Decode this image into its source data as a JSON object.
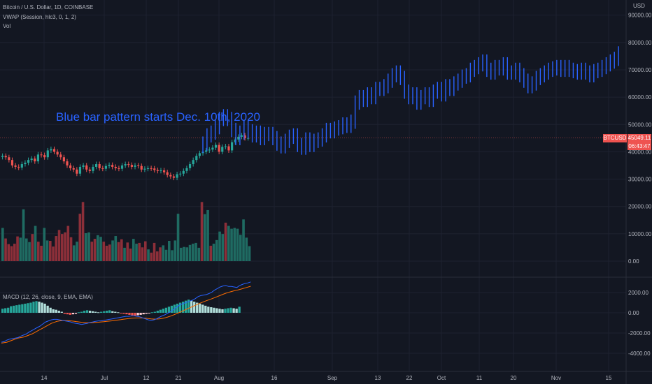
{
  "legend": {
    "symbol": "Bitcoin / U.S. Dollar, 1D, COINBASE",
    "vwap": "VWAP (Session, hlc3, 0, 1, 2)",
    "vol": "Vol",
    "macd": "MACD (12, 26, close, 9, EMA, EMA)"
  },
  "currency": "USD",
  "annotation": "Blue bar pattern starts Dec. 10th, 2020",
  "badge": {
    "ticker": "BTCUSD",
    "price": "45049.11",
    "countdown": "06:43:47"
  },
  "colors": {
    "background": "#131722",
    "grid": "#1e2230",
    "up": "#26a69a",
    "down": "#ef5350",
    "projection": "#2962ff",
    "vol_up": "#1f6b62",
    "vol_down": "#8c2f39",
    "macd_line": "#2962ff",
    "signal_line": "#ff6d00",
    "hist_pos": "#26a69a",
    "hist_pos_light": "#b2dfdb",
    "hist_neg": "#ef5350",
    "hist_neg_light": "#ffcdd2"
  },
  "chart_data": [
    {
      "type": "candlestick",
      "title": "Bitcoin / U.S. Dollar, 1D, COINBASE",
      "y_ticks": [
        "90000.00",
        "80000.00",
        "70000.00",
        "60000.00",
        "50000.00",
        "40000.00",
        "30000.00",
        "20000.00",
        "10000.00",
        "0.00"
      ],
      "x_ticks": [
        "14",
        "Jul",
        "12",
        "21",
        "Aug",
        "16",
        "Sep",
        "13",
        "22",
        "Oct",
        "11",
        "20",
        "Nov",
        "15"
      ],
      "ylim": [
        -5000,
        92000
      ],
      "last_price": 45049.11,
      "candles_close": [
        38500,
        38000,
        37000,
        35000,
        34500,
        34200,
        35500,
        36000,
        37000,
        37500,
        36500,
        39000,
        38800,
        38000,
        40500,
        41000,
        40000,
        39000,
        38000,
        36500,
        35000,
        34000,
        33500,
        32000,
        34500,
        35000,
        33500,
        33000,
        34500,
        35500,
        34000,
        33800,
        34800,
        35200,
        34500,
        34000,
        33800,
        35000,
        35500,
        35200,
        34500,
        35000,
        34800,
        33500,
        33800,
        34000,
        33900,
        33300,
        33000,
        33200,
        32500,
        31500,
        31000,
        30500,
        31800,
        32000,
        33000,
        34000,
        35500,
        37000,
        38500,
        39500,
        40000,
        40500,
        40800,
        41500,
        42500,
        40000,
        41800,
        42000,
        40500,
        43500,
        44500,
        45500,
        46000,
        45000,
        45049
      ],
      "projection_close": [
        43000,
        46000,
        47000,
        49000,
        52000,
        53000,
        52000,
        48000,
        45000,
        47000,
        49000,
        47500,
        46000,
        47000,
        45000,
        46500,
        46500,
        45000,
        43000,
        42000,
        44000,
        45500,
        46000,
        42500,
        41500,
        44500,
        42500,
        44000,
        44500,
        46000,
        48000,
        47500,
        48500,
        49000,
        50000,
        49500,
        51000,
        58000,
        60000,
        59000,
        61000,
        60000,
        63000,
        63000,
        64000,
        66000,
        68000,
        69000,
        67000,
        62000,
        60000,
        61000,
        58000,
        60000,
        61000,
        59000,
        62000,
        63000,
        61000,
        64000,
        63000,
        65000,
        66000,
        67500,
        68000,
        70000,
        71000,
        72000,
        73000,
        70000,
        69000,
        71000,
        70500,
        72000,
        69000,
        69000,
        70000,
        68000,
        66000,
        64000,
        65000,
        67000,
        68000,
        69000,
        70000,
        70500,
        71000,
        70000,
        71000,
        70000,
        69500,
        69000,
        70000,
        69000,
        68000,
        69500,
        70000,
        71000,
        72000,
        73000,
        74000,
        76000
      ],
      "volume": [
        8200,
        5600,
        4200,
        3700,
        4300,
        6100,
        5800,
        12800,
        5600,
        4700,
        6700,
        8700,
        4800,
        3800,
        8200,
        5100,
        5000,
        3600,
        6200,
        7700,
        6700,
        7100,
        8700,
        5900,
        3900,
        4800,
        11700,
        14600,
        6900,
        7100,
        4800,
        5500,
        6400,
        6000,
        4800,
        3800,
        4100,
        5100,
        6200,
        4700,
        5400,
        3300,
        4600,
        3100,
        5500,
        4300,
        4500,
        3400,
        4900,
        2900,
        2100,
        4500,
        2400,
        3400,
        3900,
        2800,
        5000,
        2700,
        5100,
        11700,
        3300,
        3500,
        3400,
        4000,
        4300,
        4500,
        3300,
        14600,
        11600,
        12600,
        3800,
        4300,
        5200,
        7300,
        6700,
        9500,
        8700,
        8000,
        8200,
        8000,
        6500,
        10300,
        5800,
        3700
      ],
      "macd_line": [
        -2900,
        -2850,
        -2700,
        -2600,
        -2550,
        -2500,
        -2450,
        -2300,
        -2200,
        -2100,
        -1900,
        -1750,
        -1600,
        -1450,
        -1300,
        -1100,
        -900,
        -800,
        -700,
        -650,
        -650,
        -700,
        -750,
        -800,
        -850,
        -900,
        -1000,
        -1050,
        -1100,
        -1150,
        -1100,
        -1050,
        -950,
        -900,
        -850,
        -800,
        -800,
        -750,
        -700,
        -650,
        -600,
        -550,
        -500,
        -450,
        -400,
        -350,
        -350,
        -300,
        -300,
        -350,
        -400,
        -500,
        -600,
        -700,
        -750,
        -700,
        -600,
        -450,
        -300,
        -200,
        -50,
        100,
        300,
        500,
        700,
        850,
        950,
        1050,
        1150,
        1250,
        1400,
        1600,
        1700,
        1750,
        1800,
        1900,
        2050,
        2250,
        2400,
        2550,
        2650,
        2700,
        2600,
        2600,
        2550,
        2500,
        2700,
        2800,
        2900,
        2950,
        3050
      ],
      "signal_line": [
        -3000,
        -2950,
        -2900,
        -2800,
        -2700,
        -2600,
        -2500,
        -2450,
        -2400,
        -2300,
        -2200,
        -2100,
        -1950,
        -1800,
        -1650,
        -1500,
        -1350,
        -1200,
        -1050,
        -950,
        -850,
        -800,
        -780,
        -770,
        -780,
        -800,
        -830,
        -870,
        -900,
        -940,
        -960,
        -980,
        -980,
        -970,
        -950,
        -930,
        -900,
        -880,
        -850,
        -820,
        -790,
        -750,
        -720,
        -680,
        -640,
        -600,
        -570,
        -540,
        -520,
        -510,
        -510,
        -520,
        -540,
        -570,
        -600,
        -620,
        -620,
        -600,
        -560,
        -500,
        -420,
        -330,
        -230,
        -120,
        0,
        120,
        250,
        380,
        500,
        620,
        740,
        860,
        980,
        1090,
        1190,
        1290,
        1390,
        1500,
        1610,
        1720,
        1830,
        1930,
        2020,
        2100,
        2170,
        2230,
        2300,
        2380,
        2460,
        2540,
        2620
      ],
      "macd_hist": [
        400,
        450,
        500,
        650,
        700,
        750,
        800,
        850,
        900,
        950,
        1000,
        1100,
        1150,
        1100,
        1000,
        900,
        700,
        500,
        350,
        300,
        200,
        100,
        -100,
        -150,
        -200,
        -150,
        -100,
        50,
        100,
        200,
        250,
        200,
        150,
        100,
        50,
        100,
        150,
        200,
        250,
        150,
        100,
        50,
        -50,
        -100,
        -150,
        -200,
        -250,
        -300,
        -250,
        -200,
        -150,
        -100,
        -50,
        50,
        100,
        200,
        300,
        400,
        500,
        600,
        700,
        800,
        900,
        1000,
        1100,
        1200,
        1300,
        1200,
        1100,
        1000,
        900,
        800,
        700,
        600,
        550,
        500,
        450,
        400,
        350,
        400,
        450,
        500,
        450,
        400,
        600
      ]
    }
  ]
}
